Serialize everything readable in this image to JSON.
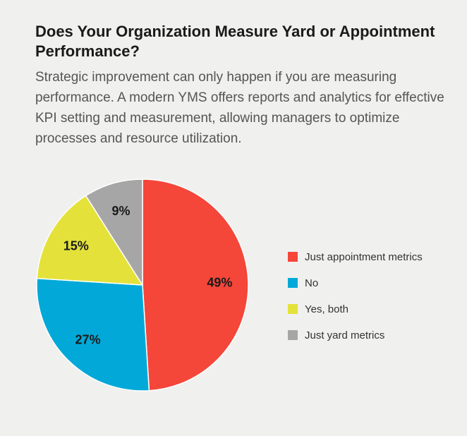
{
  "header": {
    "title": "Does Your Organization Measure Yard or Appointment Performance?",
    "subtitle": "Strategic improvement can only happen if you are measuring performance. A modern YMS offers reports and analytics for effective KPI setting and measurement, allowing managers to optimize processes and resource utilization."
  },
  "chart_data": {
    "type": "pie",
    "title": "Does Your Organization Measure Yard or Appointment Performance?",
    "slices": [
      {
        "label": "Just appointment metrics",
        "value": 49,
        "display": "49%",
        "color": "#f5463a"
      },
      {
        "label": "No",
        "value": 27,
        "display": "27%",
        "color": "#02a9d8"
      },
      {
        "label": "Yes, both",
        "value": 15,
        "display": "15%",
        "color": "#e4e23a"
      },
      {
        "label": "Just yard metrics",
        "value": 9,
        "display": "9%",
        "color": "#a6a6a6"
      }
    ],
    "legend_position": "right"
  }
}
